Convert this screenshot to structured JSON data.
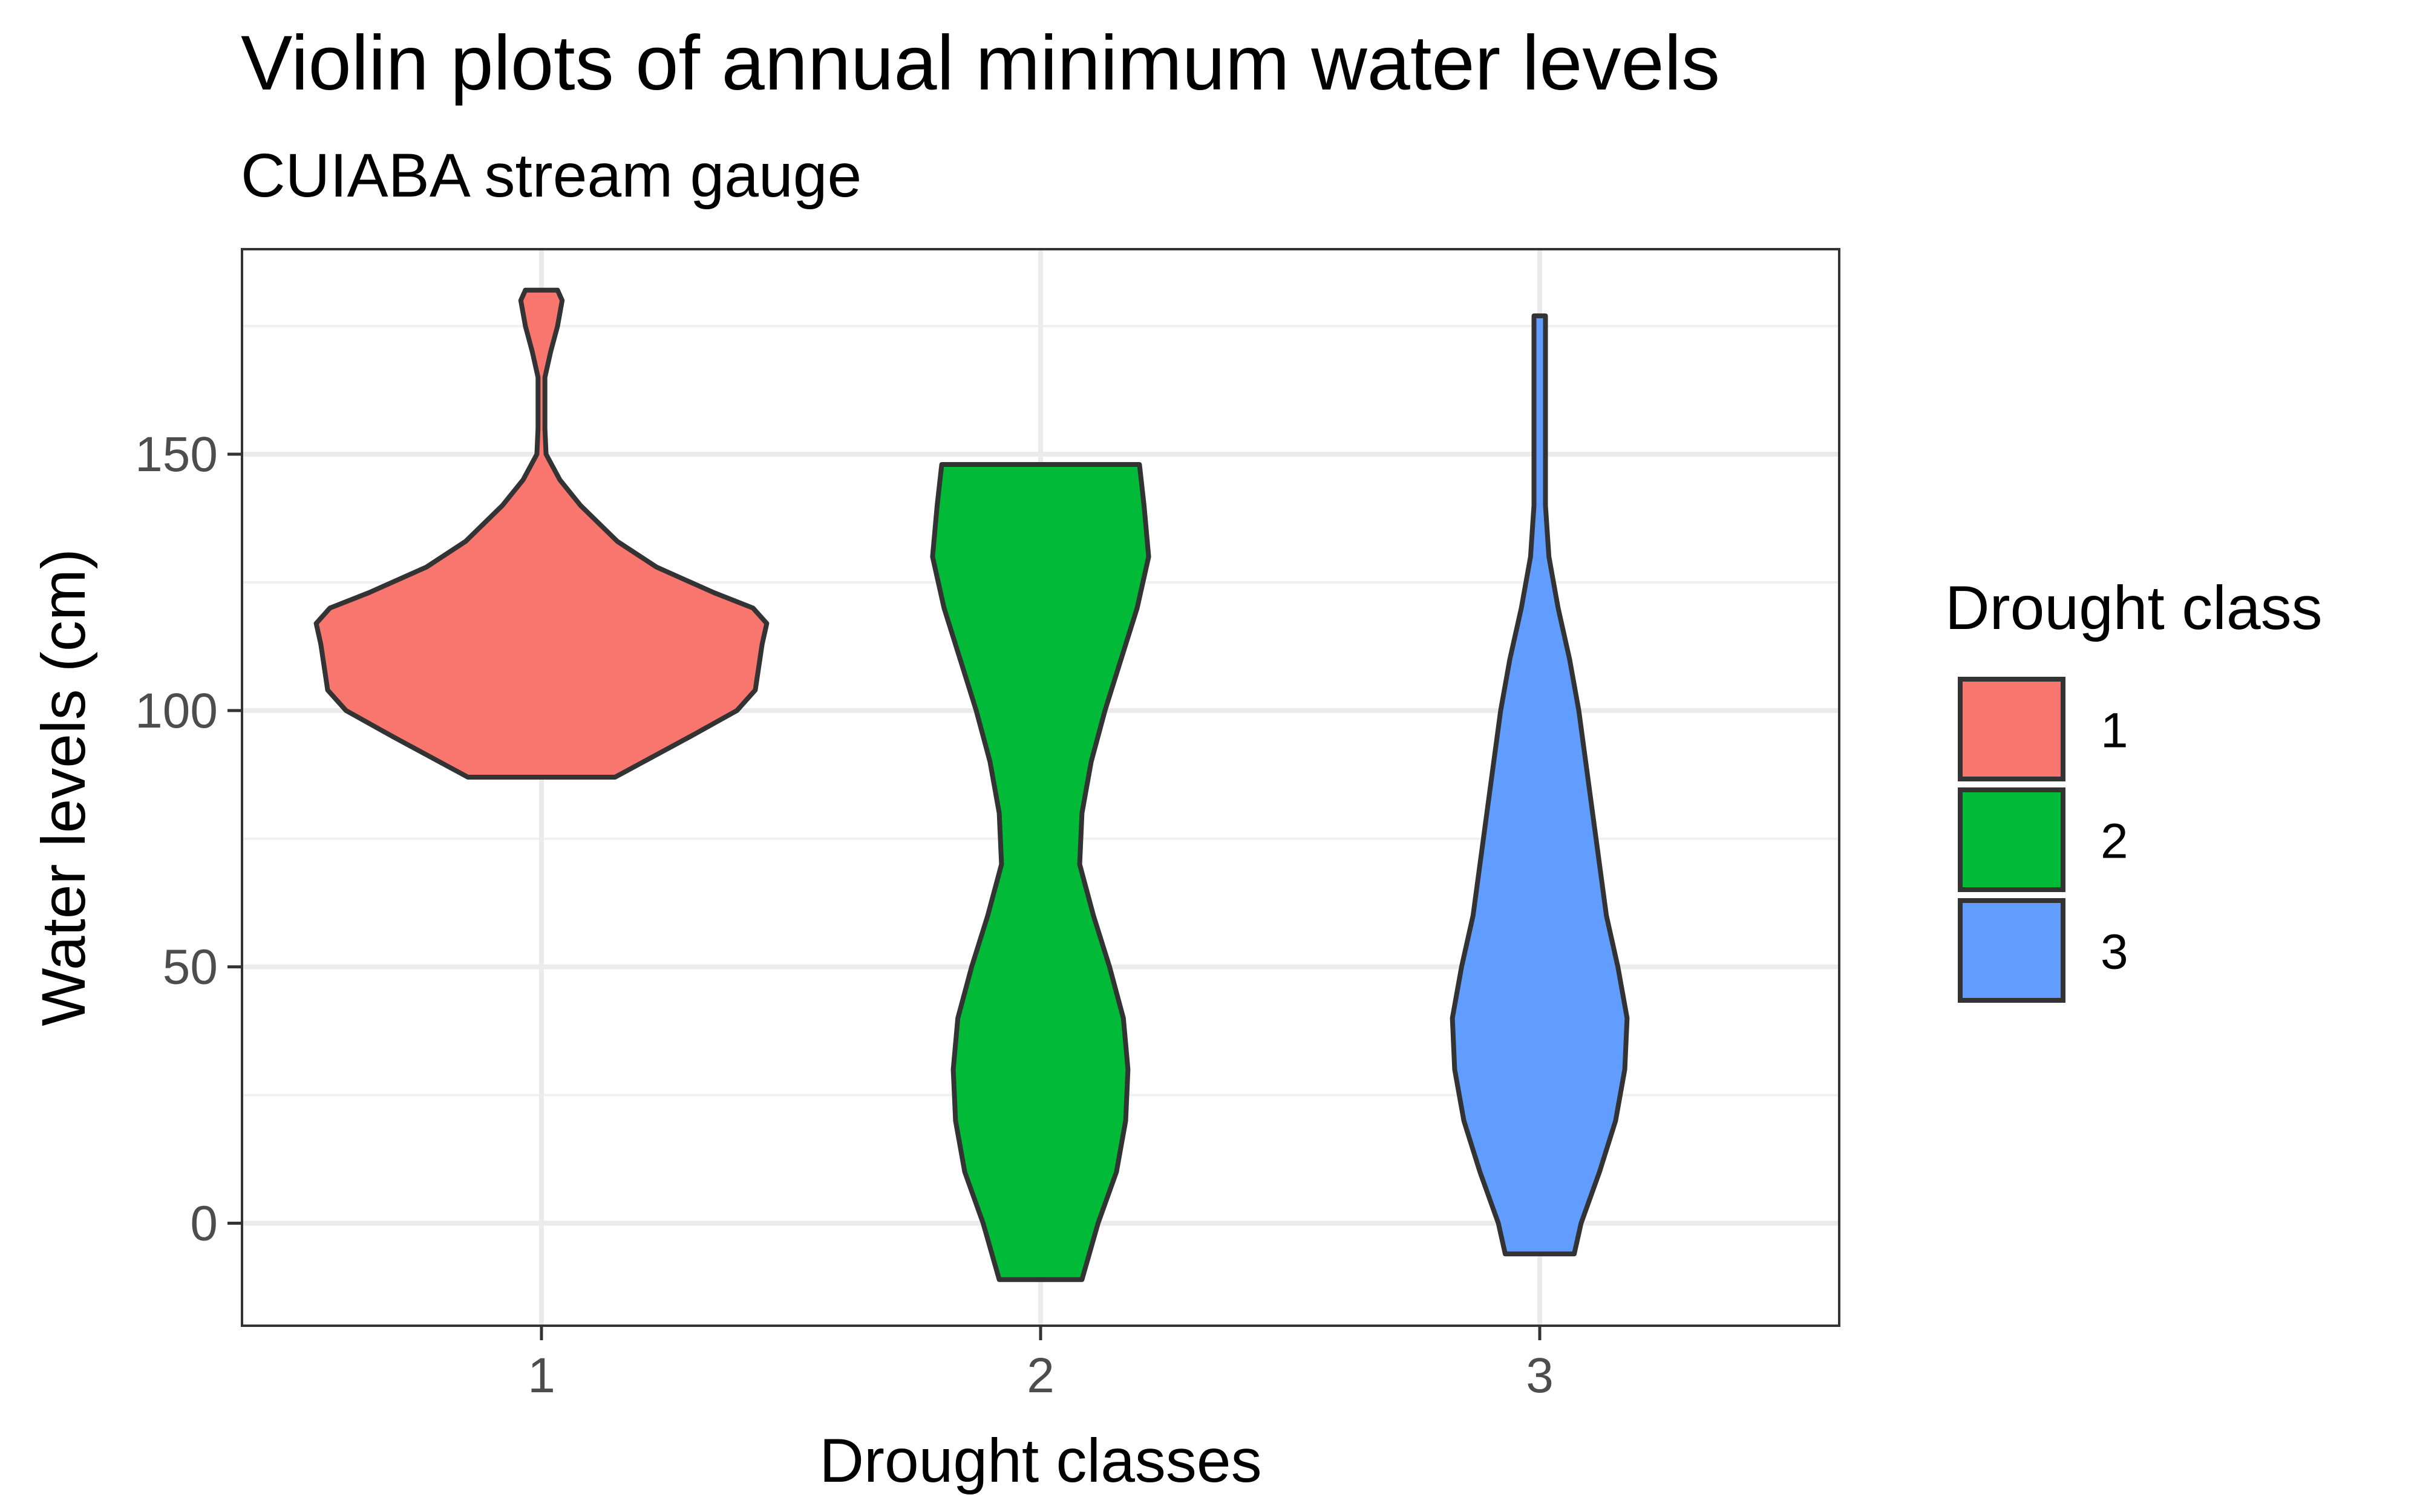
{
  "chart_data": {
    "type": "violin",
    "title": "Violin plots of annual minimum water levels",
    "subtitle": "CUIABA stream gauge",
    "xlabel": "Drought classes",
    "ylabel": "Water levels (cm)",
    "categories": [
      "1",
      "2",
      "3"
    ],
    "ylim": [
      -20,
      190
    ],
    "yticks": [
      0,
      50,
      100,
      150
    ],
    "grid": true,
    "legend": {
      "title": "Drought class",
      "position": "right"
    },
    "series": [
      {
        "name": "1",
        "color": "#F8766D",
        "min": 87,
        "max": 182,
        "density": [
          [
            87,
            0.32
          ],
          [
            95,
            0.65
          ],
          [
            100,
            0.85
          ],
          [
            104,
            0.93
          ],
          [
            110,
            0.95
          ],
          [
            113,
            0.96
          ],
          [
            117,
            0.98
          ],
          [
            120,
            0.92
          ],
          [
            123,
            0.75
          ],
          [
            128,
            0.5
          ],
          [
            133,
            0.33
          ],
          [
            140,
            0.17
          ],
          [
            145,
            0.08
          ],
          [
            150,
            0.02
          ],
          [
            155,
            0.015
          ],
          [
            165,
            0.015
          ],
          [
            170,
            0.04
          ],
          [
            175,
            0.07
          ],
          [
            180,
            0.09
          ],
          [
            182,
            0.07
          ]
        ]
      },
      {
        "name": "2",
        "color": "#00BA38",
        "min": -11,
        "max": 148,
        "density": [
          [
            -11,
            0.18
          ],
          [
            0,
            0.25
          ],
          [
            10,
            0.33
          ],
          [
            20,
            0.37
          ],
          [
            30,
            0.38
          ],
          [
            40,
            0.36
          ],
          [
            50,
            0.3
          ],
          [
            60,
            0.23
          ],
          [
            70,
            0.17
          ],
          [
            80,
            0.18
          ],
          [
            90,
            0.22
          ],
          [
            100,
            0.28
          ],
          [
            110,
            0.35
          ],
          [
            120,
            0.42
          ],
          [
            130,
            0.47
          ],
          [
            140,
            0.45
          ],
          [
            148,
            0.43
          ]
        ]
      },
      {
        "name": "3",
        "color": "#619CFF",
        "min": -6,
        "max": 177,
        "density": [
          [
            -6,
            0.15
          ],
          [
            0,
            0.18
          ],
          [
            10,
            0.26
          ],
          [
            20,
            0.33
          ],
          [
            30,
            0.37
          ],
          [
            40,
            0.38
          ],
          [
            50,
            0.34
          ],
          [
            60,
            0.29
          ],
          [
            70,
            0.26
          ],
          [
            80,
            0.23
          ],
          [
            90,
            0.2
          ],
          [
            100,
            0.17
          ],
          [
            110,
            0.13
          ],
          [
            120,
            0.08
          ],
          [
            130,
            0.04
          ],
          [
            140,
            0.025
          ],
          [
            150,
            0.025
          ],
          [
            160,
            0.025
          ],
          [
            170,
            0.025
          ],
          [
            177,
            0.025
          ]
        ]
      }
    ]
  }
}
